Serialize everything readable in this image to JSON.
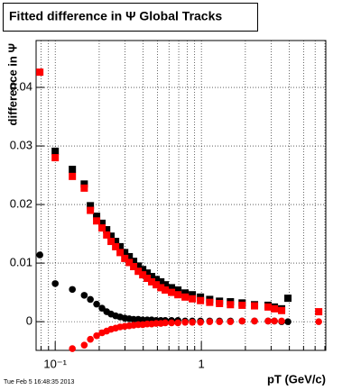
{
  "chart_data": {
    "type": "scatter",
    "title": "Fitted difference in Ψ  Global Tracks",
    "x_label": "pT (GeV/c)",
    "y_label": "difference in Ψ",
    "timestamp": "Tue Feb  5 16:48:35 2013",
    "x": [
      0.0785,
      0.1,
      0.131,
      0.158,
      0.174,
      0.192,
      0.209,
      0.225,
      0.241,
      0.259,
      0.278,
      0.299,
      0.321,
      0.344,
      0.37,
      0.397,
      0.426,
      0.457,
      0.491,
      0.528,
      0.566,
      0.625,
      0.691,
      0.774,
      0.867,
      0.986,
      1.14,
      1.33,
      1.58,
      1.9,
      2.31,
      2.86,
      3.16,
      3.54,
      3.91,
      6.35
    ],
    "series": [
      {
        "color": "#000000",
        "marker": "square",
        "values": [
          null,
          0.0291,
          0.026,
          0.0235,
          0.0198,
          0.018,
          0.0168,
          0.0157,
          0.0146,
          0.0137,
          0.0128,
          0.0118,
          0.0111,
          0.0103,
          0.0095,
          0.0089,
          0.0083,
          0.0077,
          0.0072,
          0.0068,
          0.0063,
          0.0058,
          0.0054,
          0.0049,
          0.0046,
          0.0042,
          0.0038,
          0.0035,
          0.0034,
          0.0032,
          0.0029,
          0.0028,
          0.0025,
          0.0022,
          0.004,
          null
        ]
      },
      {
        "color": "#ff0000",
        "marker": "square",
        "values": [
          0.0426,
          0.028,
          0.0248,
          0.0228,
          0.019,
          0.0172,
          0.016,
          0.0148,
          0.0137,
          0.0128,
          0.0118,
          0.0108,
          0.0101,
          0.0094,
          0.0086,
          0.008,
          0.0074,
          0.0068,
          0.0063,
          0.0058,
          0.0054,
          0.005,
          0.0046,
          0.0042,
          0.0039,
          0.0036,
          0.0033,
          0.0031,
          0.0029,
          0.0028,
          0.0027,
          0.0025,
          0.0022,
          0.0019,
          null,
          0.0017
        ]
      },
      {
        "color": "#000000",
        "marker": "circle",
        "values": [
          0.0114,
          0.0065,
          0.0055,
          0.0045,
          0.0038,
          0.003,
          0.0023,
          0.0017,
          0.0013,
          0.001,
          0.0008,
          0.0006,
          0.0005,
          0.0004,
          0.0004,
          0.0003,
          0.0003,
          0.0003,
          0.0002,
          0.0002,
          0.0002,
          0.0002,
          0.0002,
          0.0001,
          0.0001,
          0.0001,
          0.0001,
          0.0001,
          0.0001,
          0.0001,
          0.0001,
          0.0001,
          0.0001,
          0.0,
          0.0,
          null
        ]
      },
      {
        "color": "#ff0000",
        "marker": "circle",
        "values": [
          null,
          null,
          -0.0046,
          -0.004,
          -0.003,
          -0.0024,
          -0.0019,
          -0.0016,
          -0.0013,
          -0.0011,
          -0.0009,
          -0.0008,
          -0.0007,
          -0.0006,
          -0.0005,
          -0.0005,
          -0.0004,
          -0.0004,
          -0.0003,
          -0.0003,
          -0.0002,
          -0.0002,
          -0.0002,
          -0.0001,
          -0.0001,
          -0.0001,
          0,
          0,
          0,
          0.0001,
          0.0001,
          0.0001,
          0.0001,
          0.0001,
          null,
          0
        ]
      }
    ],
    "xlog": true,
    "xlim": [
      0.074,
      7.1
    ],
    "xticks": [
      {
        "value": 0.1,
        "label": "10⁻¹"
      },
      1
    ],
    "xminor": [
      0.08,
      0.09,
      0.2,
      0.3,
      0.4,
      0.5,
      0.6,
      0.7,
      0.8,
      0.9,
      2,
      3,
      4,
      5,
      6,
      7
    ],
    "ylim": [
      -0.0049,
      0.048
    ],
    "yticks": [
      0,
      0.01,
      0.02,
      0.03,
      0.04
    ],
    "grid": true
  }
}
